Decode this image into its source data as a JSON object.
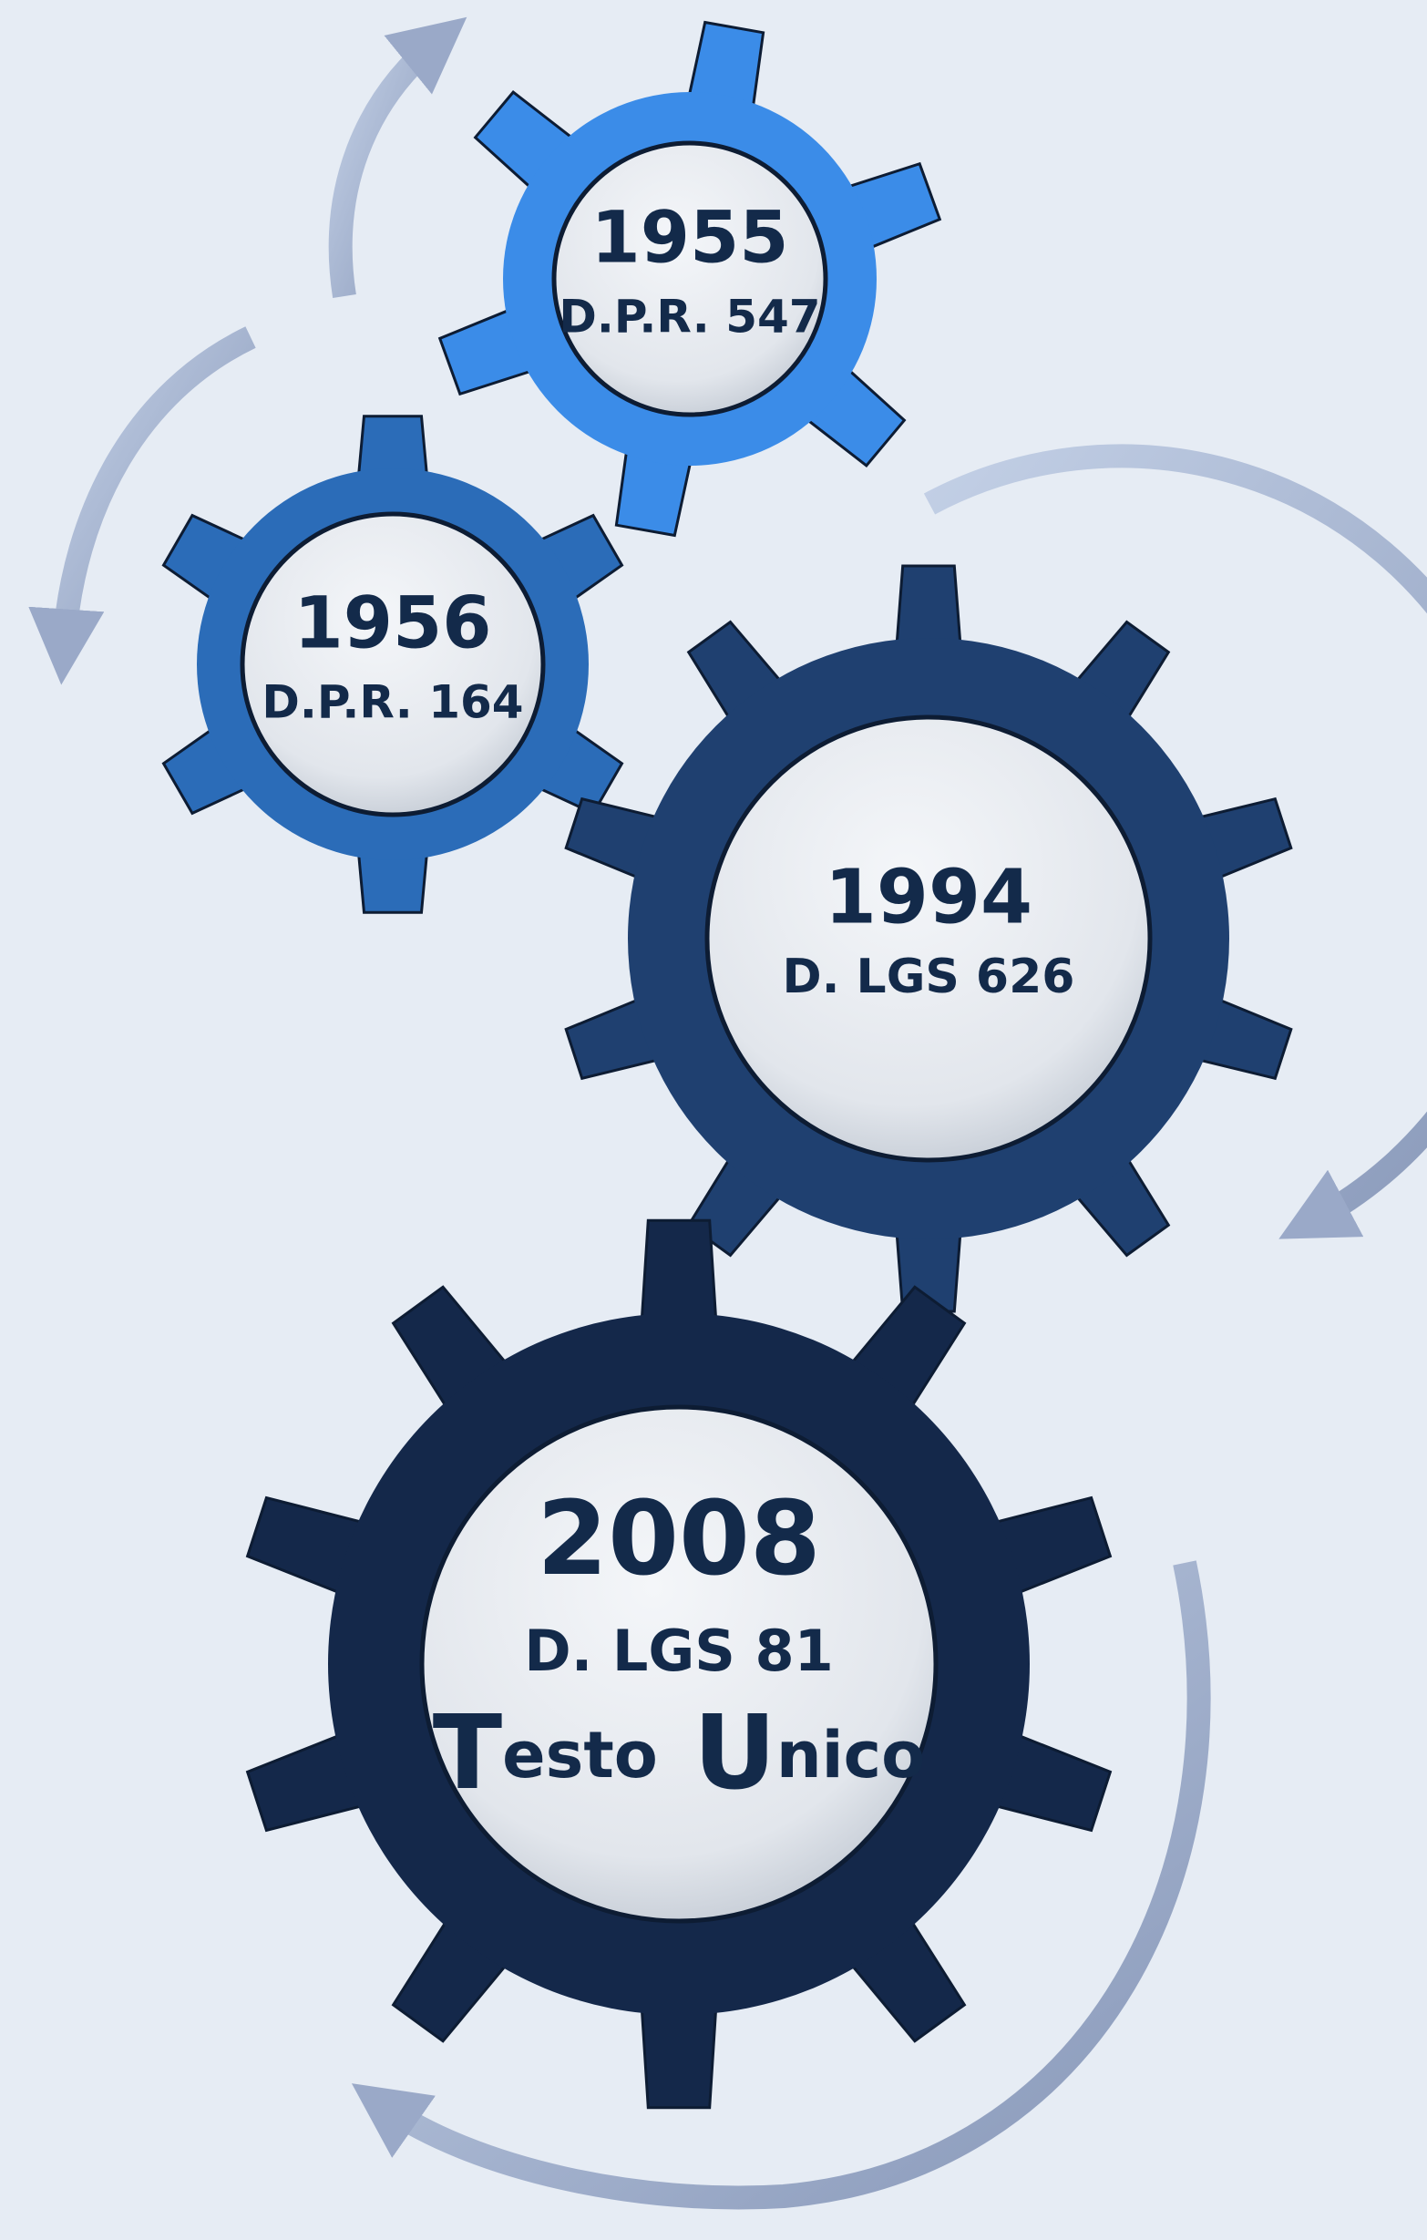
{
  "gears": [
    {
      "year": "1955",
      "label": "D.P.R. 547"
    },
    {
      "year": "1956",
      "label": "D.P.R. 164"
    },
    {
      "year": "1994",
      "label": "D. LGS 626"
    },
    {
      "year": "2008",
      "label": "D. LGS 81",
      "subtitle": "Testo Unico"
    }
  ]
}
